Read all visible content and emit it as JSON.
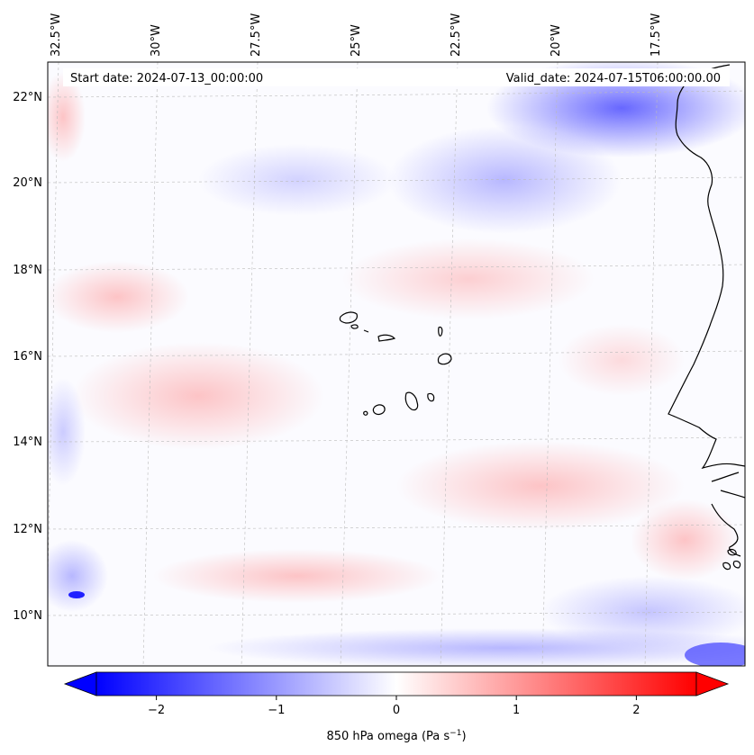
{
  "map": {
    "start_label": "Start date: 2024-07-13_00:00:00",
    "valid_label": "Valid_date: 2024-07-15T06:00:00.00",
    "lon_labels": [
      "32.5°W",
      "30°W",
      "27.5°W",
      "25°W",
      "22.5°W",
      "20°W",
      "17.5°W"
    ],
    "lat_labels": [
      "22°N",
      "20°N",
      "18°N",
      "16°N",
      "14°N",
      "12°N",
      "10°N"
    ],
    "gridlines": true,
    "field": "850 hPa omega",
    "colormap": "bwr"
  },
  "colorbar": {
    "label": "850 hPa omega (Pa s",
    "label_exp": "−1",
    "label_close": ")",
    "ticks": [
      "−2",
      "−1",
      "0",
      "1",
      "2"
    ],
    "tick_values": [
      -2,
      -1,
      0,
      1,
      2
    ],
    "range": [
      -2.6,
      2.6
    ],
    "extend": "both",
    "colors": {
      "low": "#0000ff",
      "mid": "#ffffff",
      "high": "#ff0000"
    }
  },
  "colors": {
    "coast": "#000000",
    "grid": "#bbbbbb"
  }
}
